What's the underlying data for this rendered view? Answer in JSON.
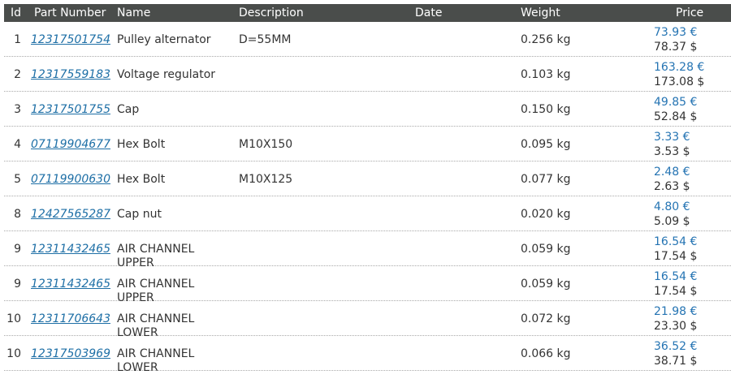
{
  "table": {
    "headers": {
      "id": "Id",
      "part_number": "Part Number",
      "name": "Name",
      "description": "Description",
      "date": "Date",
      "weight": "Weight",
      "price": "Price"
    },
    "rows": [
      {
        "id": "1",
        "part_number": "12317501754",
        "name": "Pulley alternator",
        "description": "D=55MM",
        "date": "",
        "weight": "0.256 kg",
        "price_eur": "73.93 €",
        "price_usd": "78.37 $"
      },
      {
        "id": "2",
        "part_number": "12317559183",
        "name": "Voltage regulator",
        "description": "",
        "date": "",
        "weight": "0.103 kg",
        "price_eur": "163.28 €",
        "price_usd": "173.08 $"
      },
      {
        "id": "3",
        "part_number": "12317501755",
        "name": "Cap",
        "description": "",
        "date": "",
        "weight": "0.150 kg",
        "price_eur": "49.85 €",
        "price_usd": "52.84 $"
      },
      {
        "id": "4",
        "part_number": "07119904677",
        "name": "Hex Bolt",
        "description": "M10X150",
        "date": "",
        "weight": "0.095 kg",
        "price_eur": "3.33 €",
        "price_usd": "3.53 $"
      },
      {
        "id": "5",
        "part_number": "07119900630",
        "name": "Hex Bolt",
        "description": "M10X125",
        "date": "",
        "weight": "0.077 kg",
        "price_eur": "2.48 €",
        "price_usd": "2.63 $"
      },
      {
        "id": "8",
        "part_number": "12427565287",
        "name": "Cap nut",
        "description": "",
        "date": "",
        "weight": "0.020 kg",
        "price_eur": "4.80 €",
        "price_usd": "5.09 $"
      },
      {
        "id": "9",
        "part_number": "12311432465",
        "name": "AIR CHANNEL UPPER",
        "description": "",
        "date": "",
        "weight": "0.059 kg",
        "price_eur": "16.54 €",
        "price_usd": "17.54 $"
      },
      {
        "id": "9",
        "part_number": "12311432465",
        "name": "AIR CHANNEL UPPER",
        "description": "",
        "date": "",
        "weight": "0.059 kg",
        "price_eur": "16.54 €",
        "price_usd": "17.54 $"
      },
      {
        "id": "10",
        "part_number": "12311706643",
        "name": "AIR CHANNEL LOWER",
        "description": "",
        "date": "",
        "weight": "0.072 kg",
        "price_eur": "21.98 €",
        "price_usd": "23.30 $"
      },
      {
        "id": "10",
        "part_number": "12317503969",
        "name": "AIR CHANNEL LOWER",
        "description": "",
        "date": "",
        "weight": "0.066 kg",
        "price_eur": "36.52 €",
        "price_usd": "38.71 $"
      }
    ]
  }
}
